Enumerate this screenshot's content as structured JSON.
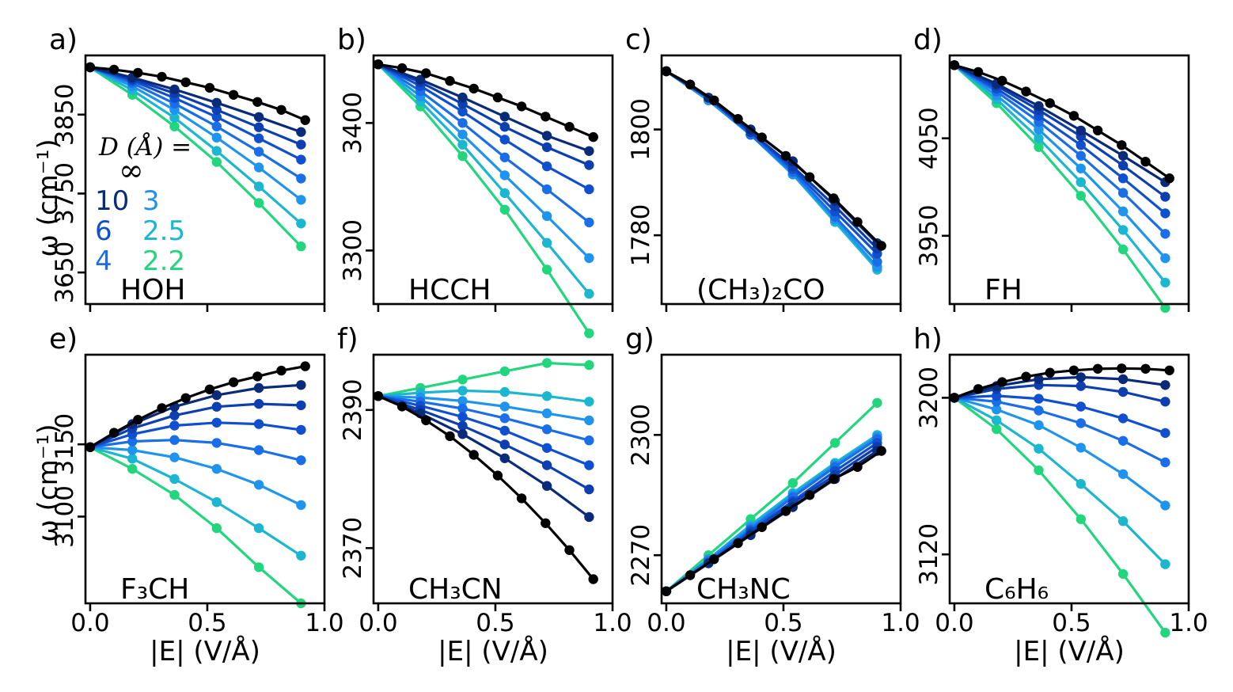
{
  "figure": {
    "ylabel": "ω (cm⁻¹)",
    "xlabel": "|E| (V/Å)",
    "legend": {
      "title": "D (Å) =",
      "inf_label": "∞",
      "entries": [
        {
          "label": "10",
          "color": "#0a2a7a"
        },
        {
          "label": "6",
          "color": "#0f4fd0"
        },
        {
          "label": "4",
          "color": "#1a6ee8"
        },
        {
          "label": "3",
          "color": "#1f94ee"
        },
        {
          "label": "2.5",
          "color": "#1bb6d0"
        },
        {
          "label": "2.2",
          "color": "#22d67e"
        }
      ]
    },
    "series_colors": [
      "#000000",
      "#0a2a7a",
      "#0d3fb0",
      "#0f4fd0",
      "#1a6ee8",
      "#1f94ee",
      "#1bb6d0",
      "#22d67e"
    ],
    "xticks": [
      0.0,
      0.5,
      1.0
    ],
    "xtick_labels": [
      "0.0",
      "0.5",
      "1.0"
    ]
  },
  "chart_data": [
    {
      "type": "line",
      "panel": "a)",
      "molecule": "HOH",
      "xlim": [
        -0.02,
        1.0
      ],
      "ylim": [
        3610,
        3925
      ],
      "yticks": [
        3650,
        3750,
        3850
      ],
      "ytick_labels": [
        "3650",
        "3750",
        "3850"
      ],
      "x_fine": [
        0,
        0.102,
        0.204,
        0.306,
        0.408,
        0.51,
        0.612,
        0.714,
        0.816,
        0.918
      ],
      "x_coarse": [
        0,
        0.18,
        0.36,
        0.54,
        0.72,
        0.9
      ],
      "series": [
        {
          "values": [
            3910,
            3907,
            3903,
            3898,
            3891,
            3884,
            3875,
            3866,
            3856,
            3843
          ]
        },
        {
          "values": [
            3910,
            3897,
            3882,
            3865,
            3847,
            3828
          ]
        },
        {
          "values": [
            3910,
            3895,
            3877,
            3856,
            3834,
            3812
          ]
        },
        {
          "values": [
            3910,
            3893,
            3871,
            3847,
            3820,
            3793
          ]
        },
        {
          "values": [
            3910,
            3890,
            3864,
            3835,
            3803,
            3769
          ]
        },
        {
          "values": [
            3910,
            3886,
            3856,
            3821,
            3783,
            3742
          ]
        },
        {
          "values": [
            3910,
            3881,
            3846,
            3804,
            3759,
            3712
          ]
        },
        {
          "values": [
            3910,
            3875,
            3835,
            3790,
            3738,
            3683
          ]
        }
      ]
    },
    {
      "type": "line",
      "panel": "b)",
      "molecule": "HCCH",
      "xlim": [
        -0.02,
        1.0
      ],
      "ylim": [
        3258,
        3453
      ],
      "yticks": [
        3300,
        3400
      ],
      "ytick_labels": [
        "3300",
        "3400"
      ],
      "x_fine": [
        0,
        0.102,
        0.204,
        0.306,
        0.408,
        0.51,
        0.612,
        0.714,
        0.816,
        0.918
      ],
      "x_coarse": [
        0,
        0.18,
        0.36,
        0.54,
        0.72,
        0.9
      ],
      "series": [
        {
          "values": [
            3446,
            3443,
            3439,
            3433,
            3427,
            3420,
            3413,
            3405,
            3397,
            3389
          ]
        },
        {
          "values": [
            3446,
            3434,
            3420,
            3405,
            3390,
            3378
          ]
        },
        {
          "values": [
            3446,
            3432,
            3415,
            3397,
            3381,
            3367
          ]
        },
        {
          "values": [
            3446,
            3429,
            3409,
            3387,
            3366,
            3348
          ]
        },
        {
          "values": [
            3446,
            3425,
            3400,
            3373,
            3348,
            3322
          ]
        },
        {
          "values": [
            3446,
            3421,
            3391,
            3359,
            3327,
            3294
          ]
        },
        {
          "values": [
            3446,
            3417,
            3383,
            3345,
            3306,
            3266
          ]
        },
        {
          "values": [
            3446,
            3413,
            3374,
            3332,
            3285,
            3235
          ]
        }
      ]
    },
    {
      "type": "line",
      "panel": "c)",
      "molecule": "(CH₃)₂CO",
      "xlim": [
        -0.02,
        1.0
      ],
      "ylim": [
        1767,
        1814
      ],
      "yticks": [
        1780,
        1800
      ],
      "ytick_labels": [
        "1780",
        "1800"
      ],
      "x_fine": [
        0,
        0.102,
        0.204,
        0.306,
        0.408,
        0.51,
        0.612,
        0.714,
        0.816,
        0.918
      ],
      "x_coarse": [
        0,
        0.18,
        0.36,
        0.54,
        0.72,
        0.9
      ],
      "series": [
        {
          "values": [
            1811,
            1808.5,
            1805.5,
            1802,
            1798.5,
            1795,
            1791,
            1787,
            1782.5,
            1778
          ]
        },
        {
          "values": [
            1811,
            1806,
            1800,
            1794,
            1786.5,
            1778.5
          ]
        },
        {
          "values": [
            1811,
            1806,
            1799.5,
            1793,
            1785.5,
            1777.5
          ]
        },
        {
          "values": [
            1811,
            1806,
            1799.5,
            1792.5,
            1784.5,
            1776.5
          ]
        },
        {
          "values": [
            1811,
            1806,
            1799,
            1792,
            1783.5,
            1775
          ]
        },
        {
          "values": [
            1811,
            1805.5,
            1799,
            1791.5,
            1783,
            1774
          ]
        },
        {
          "values": [
            1811,
            1805.5,
            1799,
            1791.5,
            1782.5,
            1773.5
          ]
        },
        {
          "values": [
            1811,
            1805.5,
            1799,
            1791.5,
            1783,
            1774
          ]
        }
      ]
    },
    {
      "type": "line",
      "panel": "d)",
      "molecule": "FH",
      "xlim": [
        -0.02,
        1.0
      ],
      "ylim": [
        3880,
        4135
      ],
      "yticks": [
        3950,
        4050
      ],
      "ytick_labels": [
        "3950",
        "4050"
      ],
      "x_fine": [
        0,
        0.102,
        0.204,
        0.306,
        0.408,
        0.51,
        0.612,
        0.714,
        0.816,
        0.918
      ],
      "x_coarse": [
        0,
        0.18,
        0.36,
        0.54,
        0.72,
        0.9
      ],
      "series": [
        {
          "values": [
            4125,
            4118,
            4109,
            4098,
            4086,
            4073,
            4058,
            4043,
            4026,
            4009
          ]
        },
        {
          "values": [
            4125,
            4106,
            4083,
            4058,
            4032,
            4005
          ]
        },
        {
          "values": [
            4125,
            4104,
            4079,
            4052,
            4022,
            3990
          ]
        },
        {
          "values": [
            4125,
            4101,
            4073,
            4043,
            4009,
            3973
          ]
        },
        {
          "values": [
            4125,
            4098,
            4067,
            4032,
            3994,
            3952
          ]
        },
        {
          "values": [
            4125,
            4094,
            4059,
            4019,
            3975,
            3927
          ]
        },
        {
          "values": [
            4125,
            4090,
            4050,
            4005,
            3956,
            3902
          ]
        },
        {
          "values": [
            4125,
            4086,
            4041,
            3991,
            3936,
            3876
          ]
        }
      ]
    },
    {
      "type": "line",
      "panel": "e)",
      "molecule": "F₃CH",
      "xlim": [
        -0.02,
        1.0
      ],
      "ylim": [
        3040,
        3212
      ],
      "yticks": [
        3100,
        3150
      ],
      "ytick_labels": [
        "3100",
        "3150"
      ],
      "x_fine": [
        0,
        0.102,
        0.204,
        0.306,
        0.408,
        0.51,
        0.612,
        0.714,
        0.816,
        0.918
      ],
      "x_coarse": [
        0,
        0.18,
        0.36,
        0.54,
        0.72,
        0.9
      ],
      "series": [
        {
          "values": [
            3148,
            3158,
            3167,
            3175,
            3182,
            3188,
            3193,
            3197,
            3201,
            3204
          ]
        },
        {
          "values": [
            3148,
            3164,
            3176,
            3184,
            3189,
            3191
          ]
        },
        {
          "values": [
            3148,
            3161,
            3170,
            3176,
            3178,
            3177
          ]
        },
        {
          "values": [
            3148,
            3157,
            3163,
            3165,
            3164,
            3160
          ]
        },
        {
          "values": [
            3148,
            3152,
            3153,
            3151,
            3146,
            3139
          ]
        },
        {
          "values": [
            3148,
            3146,
            3141,
            3133,
            3122,
            3108
          ]
        },
        {
          "values": [
            3148,
            3140,
            3126,
            3110,
            3092,
            3073
          ]
        },
        {
          "values": [
            3148,
            3133,
            3115,
            3092,
            3065,
            3040
          ]
        }
      ]
    },
    {
      "type": "line",
      "panel": "f)",
      "molecule": "CH₃CN",
      "xlim": [
        -0.02,
        1.0
      ],
      "ylim": [
        2362,
        2398
      ],
      "yticks": [
        2370,
        2390
      ],
      "ytick_labels": [
        "2370",
        "2390"
      ],
      "x_fine": [
        0,
        0.102,
        0.204,
        0.306,
        0.408,
        0.51,
        0.612,
        0.714,
        0.816,
        0.918
      ],
      "x_coarse": [
        0,
        0.18,
        0.36,
        0.54,
        0.72,
        0.9
      ],
      "series": [
        {
          "values": [
            2392,
            2390.5,
            2388.5,
            2386.2,
            2383.5,
            2380.5,
            2377.2,
            2373.6,
            2369.7,
            2365.5
          ]
        },
        {
          "values": [
            2392,
            2389.5,
            2386.5,
            2383,
            2379,
            2374.5
          ]
        },
        {
          "values": [
            2392,
            2390,
            2387.7,
            2385,
            2382,
            2378.5
          ]
        },
        {
          "values": [
            2392,
            2390.6,
            2389,
            2387,
            2384.5,
            2382
          ]
        },
        {
          "values": [
            2392,
            2391.2,
            2390.2,
            2388.8,
            2387.2,
            2385.6
          ]
        },
        {
          "values": [
            2392,
            2391.8,
            2391.3,
            2390.5,
            2389.5,
            2388.5
          ]
        },
        {
          "values": [
            2392,
            2392.5,
            2392.8,
            2392.6,
            2392,
            2391.2
          ]
        },
        {
          "values": [
            2392,
            2393.2,
            2394.4,
            2395.6,
            2396.8,
            2396.5
          ]
        }
      ]
    },
    {
      "type": "line",
      "panel": "g)",
      "molecule": "CH₃NC",
      "xlim": [
        -0.02,
        1.0
      ],
      "ylim": [
        2258,
        2320
      ],
      "yticks": [
        2270,
        2300
      ],
      "ytick_labels": [
        "2270",
        "2300"
      ],
      "x_fine": [
        0,
        0.102,
        0.204,
        0.306,
        0.408,
        0.51,
        0.612,
        0.714,
        0.816,
        0.918
      ],
      "x_coarse": [
        0,
        0.18,
        0.36,
        0.54,
        0.72,
        0.9
      ],
      "series": [
        {
          "values": [
            2261,
            2265,
            2269,
            2273,
            2277,
            2281,
            2285,
            2289,
            2292,
            2296
          ]
        },
        {
          "values": [
            2261,
            2268,
            2275,
            2282,
            2289,
            2296
          ]
        },
        {
          "values": [
            2261,
            2268,
            2275.5,
            2283,
            2290,
            2297
          ]
        },
        {
          "values": [
            2261,
            2268,
            2276,
            2283.5,
            2291,
            2298
          ]
        },
        {
          "values": [
            2261,
            2268.5,
            2276.5,
            2284.5,
            2292,
            2299
          ]
        },
        {
          "values": [
            2261,
            2269,
            2277,
            2285,
            2292.5,
            2299.5
          ]
        },
        {
          "values": [
            2261,
            2269,
            2277.5,
            2285.5,
            2293,
            2300
          ]
        },
        {
          "values": [
            2261,
            2270,
            2279,
            2288,
            2298,
            2308
          ]
        }
      ]
    },
    {
      "type": "line",
      "panel": "h)",
      "molecule": "C₆H₆",
      "xlim": [
        -0.02,
        1.0
      ],
      "ylim": [
        3095,
        3222
      ],
      "yticks": [
        3120,
        3200
      ],
      "ytick_labels": [
        "3120",
        "3200"
      ],
      "x_fine": [
        0,
        0.102,
        0.204,
        0.306,
        0.408,
        0.51,
        0.612,
        0.714,
        0.816,
        0.918
      ],
      "x_coarse": [
        0,
        0.18,
        0.36,
        0.54,
        0.72,
        0.9
      ],
      "series": [
        {
          "values": [
            3200,
            3204.5,
            3208,
            3210.8,
            3212.8,
            3214,
            3214.8,
            3215,
            3214.8,
            3214
          ]
        },
        {
          "values": [
            3200,
            3206,
            3209.5,
            3210.5,
            3209.5,
            3206.5
          ]
        },
        {
          "values": [
            3200,
            3204.5,
            3206.5,
            3206,
            3203,
            3198
          ]
        },
        {
          "values": [
            3200,
            3201,
            3199.5,
            3195.5,
            3189.5,
            3182
          ]
        },
        {
          "values": [
            3200,
            3198,
            3193.5,
            3187,
            3178,
            3167
          ]
        },
        {
          "values": [
            3200,
            3194,
            3186,
            3174.5,
            3161,
            3145
          ]
        },
        {
          "values": [
            3200,
            3188.5,
            3174,
            3156,
            3137,
            3115
          ]
        },
        {
          "values": [
            3200,
            3184,
            3163,
            3138,
            3110,
            3080
          ]
        }
      ]
    }
  ]
}
